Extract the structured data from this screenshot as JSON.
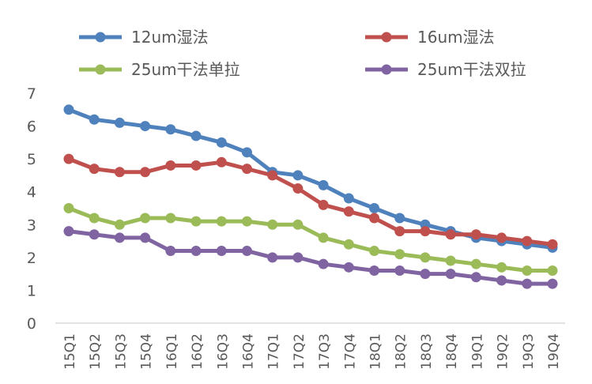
{
  "chart_data": {
    "type": "line",
    "title": "",
    "xlabel": "",
    "ylabel": "",
    "ylim": [
      0,
      7
    ],
    "yticks": [
      "0",
      "1",
      "2",
      "3",
      "4",
      "5",
      "6",
      "7"
    ],
    "grid": false,
    "legend_placement": "top",
    "categories": [
      "15Q1",
      "15Q2",
      "15Q3",
      "15Q4",
      "16Q1",
      "16Q2",
      "16Q3",
      "16Q4",
      "17Q1",
      "17Q2",
      "17Q3",
      "17Q4",
      "18Q1",
      "18Q2",
      "18Q3",
      "18Q4",
      "19Q1",
      "19Q2",
      "19Q3",
      "19Q4"
    ],
    "series": [
      {
        "name": "12um湿法",
        "color": "#4f81bd",
        "values": [
          6.5,
          6.2,
          6.1,
          6.0,
          5.9,
          5.7,
          5.5,
          5.2,
          4.6,
          4.5,
          4.2,
          3.8,
          3.5,
          3.2,
          3.0,
          2.8,
          2.6,
          2.5,
          2.4,
          2.3
        ]
      },
      {
        "name": "16um湿法",
        "color": "#c0504d",
        "values": [
          5.0,
          4.7,
          4.6,
          4.6,
          4.8,
          4.8,
          4.9,
          4.7,
          4.5,
          4.1,
          3.6,
          3.4,
          3.2,
          2.8,
          2.8,
          2.7,
          2.7,
          2.6,
          2.5,
          2.4
        ]
      },
      {
        "name": "25um干法单拉",
        "color": "#9bbb59",
        "values": [
          3.5,
          3.2,
          3.0,
          3.2,
          3.2,
          3.1,
          3.1,
          3.1,
          3.0,
          3.0,
          2.6,
          2.4,
          2.2,
          2.1,
          2.0,
          1.9,
          1.8,
          1.7,
          1.6,
          1.6
        ]
      },
      {
        "name": "25um干法双拉",
        "color": "#8064a2",
        "values": [
          2.8,
          2.7,
          2.6,
          2.6,
          2.2,
          2.2,
          2.2,
          2.2,
          2.0,
          2.0,
          1.8,
          1.7,
          1.6,
          1.6,
          1.5,
          1.5,
          1.4,
          1.3,
          1.2,
          1.2
        ]
      }
    ]
  }
}
